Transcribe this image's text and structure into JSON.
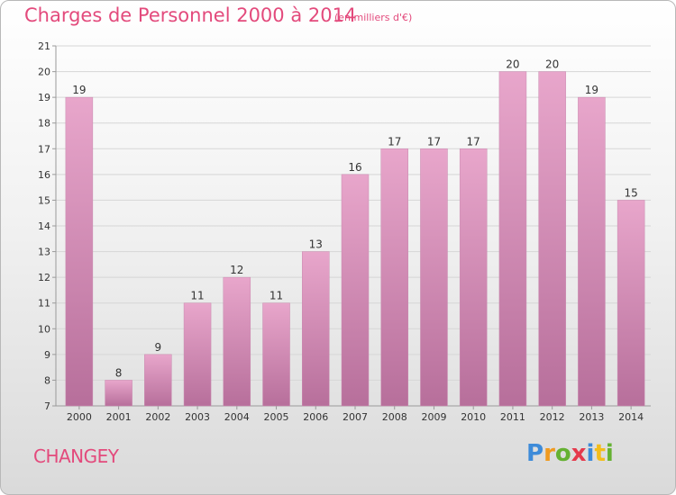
{
  "header": {
    "title": "Charges de Personnel 2000 à 2014",
    "unit": "(en milliers d'€)"
  },
  "footer": {
    "place": "CHANGEY",
    "logo": [
      "P",
      "r",
      "o",
      "x",
      "i",
      "t",
      "i"
    ]
  },
  "colors": {
    "accent": "#e34a7c",
    "bar_top": "#e8a6cb",
    "bar_bottom": "#b76f9b",
    "axis": "#9a9a9a",
    "grid": "#d6d6d6"
  },
  "chart_data": {
    "type": "bar",
    "title": "Charges de Personnel 2000 à 2014",
    "subtitle": "(en milliers d'€)",
    "categories": [
      "2000",
      "2001",
      "2002",
      "2003",
      "2004",
      "2005",
      "2006",
      "2007",
      "2008",
      "2009",
      "2010",
      "2011",
      "2012",
      "2013",
      "2014"
    ],
    "values": [
      19,
      8,
      9,
      11,
      12,
      11,
      13,
      16,
      17,
      17,
      17,
      20,
      20,
      19,
      15
    ],
    "ylim": [
      7,
      21
    ],
    "yticks": [
      7,
      8,
      9,
      10,
      11,
      12,
      13,
      14,
      15,
      16,
      17,
      18,
      19,
      20,
      21
    ],
    "grid": true,
    "legend": "none"
  }
}
